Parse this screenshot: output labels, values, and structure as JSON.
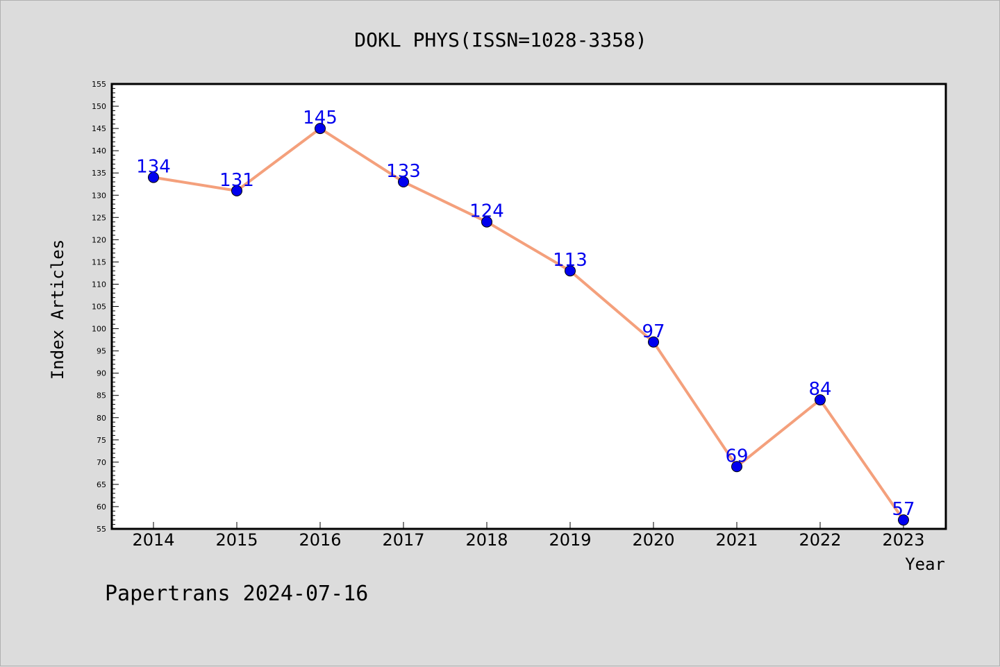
{
  "chart_data": {
    "type": "line",
    "title": "DOKL PHYS(ISSN=1028-3358)",
    "xlabel": "Year",
    "ylabel": "Index Articles",
    "categories": [
      "2014",
      "2015",
      "2016",
      "2017",
      "2018",
      "2019",
      "2020",
      "2021",
      "2022",
      "2023"
    ],
    "series": [
      {
        "values": [
          134,
          131,
          145,
          133,
          124,
          113,
          97,
          69,
          84,
          57
        ]
      }
    ],
    "ylim": [
      55,
      155
    ],
    "yticks": [
      55,
      60,
      65,
      70,
      75,
      80,
      85,
      90,
      95,
      100,
      105,
      110,
      115,
      120,
      125,
      130,
      135,
      140,
      145,
      150,
      155
    ],
    "grid": false,
    "legend": "none",
    "colors": {
      "line": "#f4a07c",
      "marker": "#0000ee",
      "label": "#0000ee",
      "background": "#dcdcdc",
      "plot": "#ffffff"
    }
  },
  "footer": {
    "text": "Papertrans 2024-07-16"
  }
}
